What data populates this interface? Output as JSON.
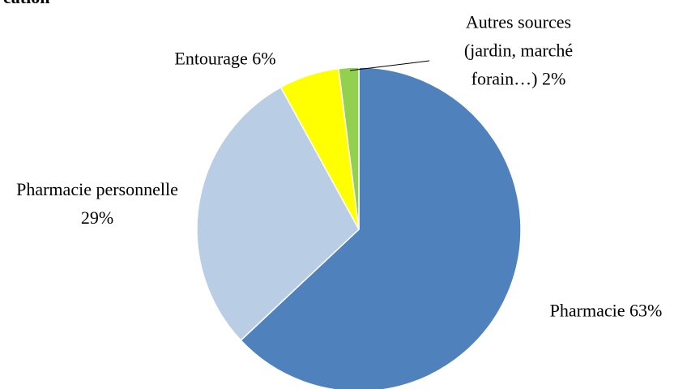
{
  "chart_data": {
    "type": "pie",
    "title": "cation",
    "categories": [
      "Pharmacie",
      "Pharmacie personnelle",
      "Entourage",
      "Autres sources (jardin, marché forain…)"
    ],
    "values": [
      63,
      29,
      6,
      2
    ],
    "value_labels": [
      "63%",
      "29%",
      "6%",
      "2%"
    ],
    "colors": [
      "#4f81bd",
      "#b9cde5",
      "#ffff00",
      "#92d050"
    ]
  }
}
